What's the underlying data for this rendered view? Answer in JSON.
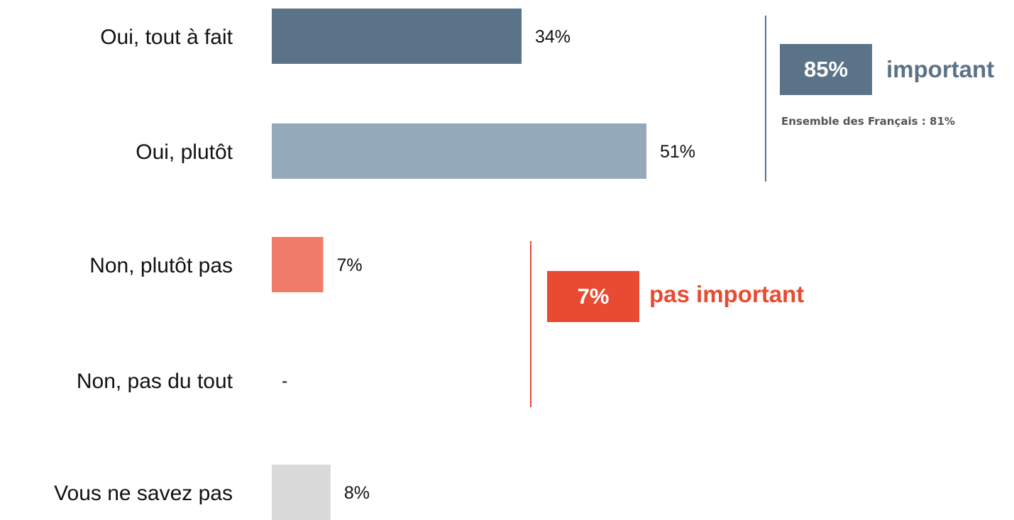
{
  "chart_data": {
    "type": "bar",
    "orientation": "horizontal",
    "categories": [
      "Oui, tout à fait",
      "Oui, plutôt",
      "Non, plutôt pas",
      "Non, pas du tout",
      "Vous ne savez pas"
    ],
    "values": [
      34,
      51,
      7,
      null,
      8
    ],
    "value_labels": [
      "34%",
      "51%",
      "7%",
      "-",
      "8%"
    ],
    "colors": [
      "#5a7388",
      "#94a9b9",
      "#f07b69",
      "#f07b69",
      "#d9d9d9"
    ],
    "xlim": [
      0,
      100
    ],
    "grid": false,
    "title": "",
    "xlabel": "",
    "ylabel": ""
  },
  "summary": {
    "positive": {
      "value": "85%",
      "label": "important",
      "color": "#5a7388",
      "note": "Ensemble des Français : 81%"
    },
    "negative": {
      "value": "7%",
      "label": "pas important",
      "color": "#e84b32"
    }
  }
}
